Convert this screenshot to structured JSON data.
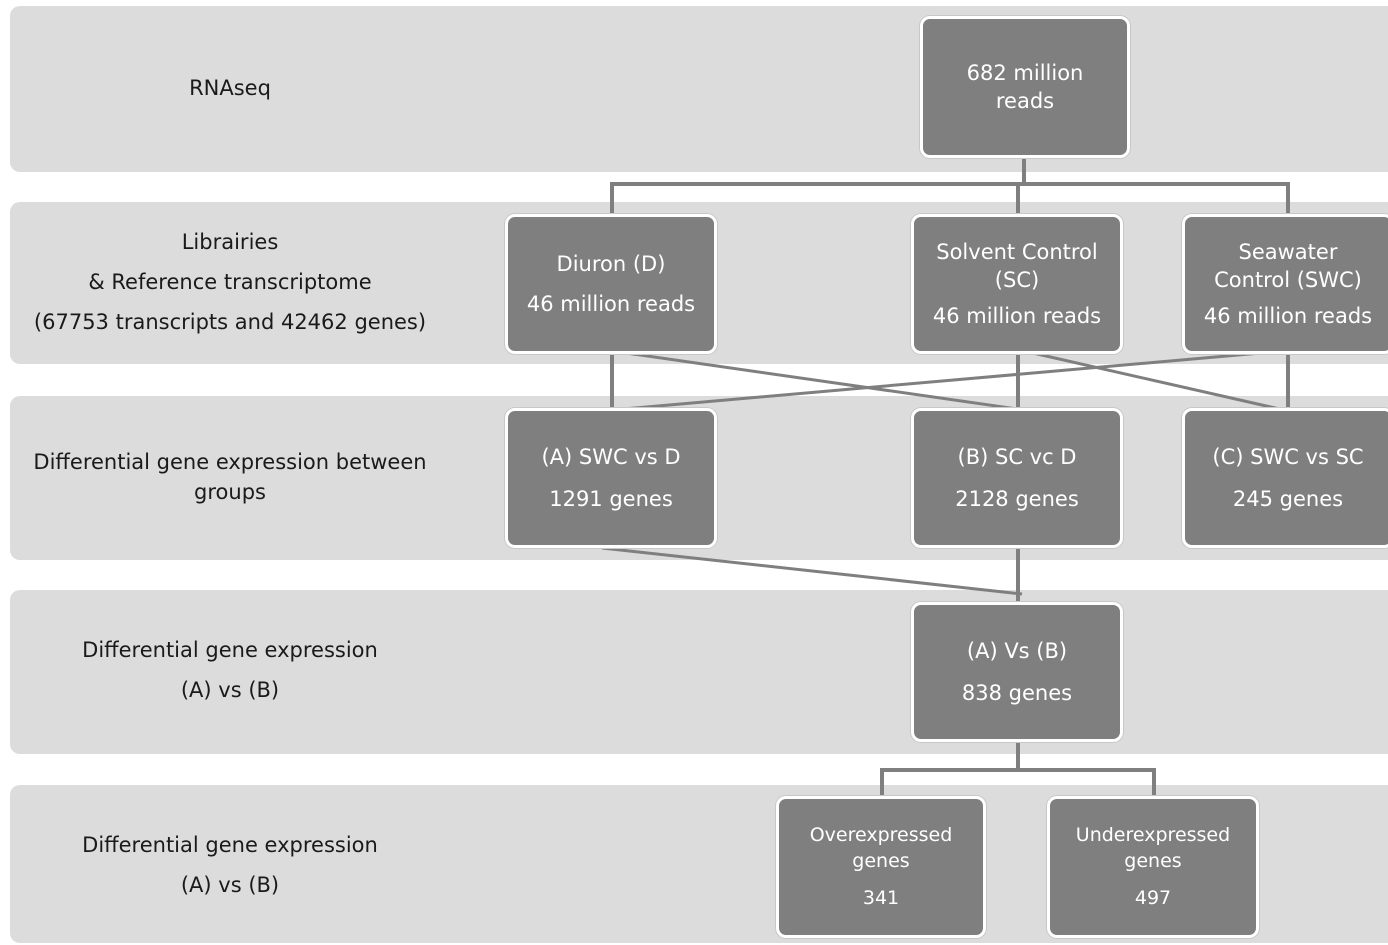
{
  "rows": [
    {
      "label_lines": [
        "RNAseq"
      ]
    },
    {
      "label_lines": [
        "Librairies",
        "& Reference transcriptome",
        "(67753 transcripts and 42462 genes)"
      ]
    },
    {
      "label_lines": [
        "Differential gene expression between",
        "groups"
      ]
    },
    {
      "label_lines": [
        "Differential gene expression",
        "(A) vs (B)"
      ]
    },
    {
      "label_lines": [
        "Differential gene expression",
        "(A) vs (B)"
      ]
    }
  ],
  "nodes": {
    "rnaseq": {
      "title": "682 million reads"
    },
    "diuron": {
      "title": "Diuron (D)",
      "count": "46 million reads"
    },
    "solvent": {
      "title": "Solvent Control (SC)",
      "count": "46 million reads"
    },
    "seawater": {
      "title": "Seawater Control (SWC)",
      "count": "46 million reads"
    },
    "cmp_a": {
      "title": "(A) SWC vs D",
      "count": "1291 genes"
    },
    "cmp_b": {
      "title": "(B) SC vc D",
      "count": "2128 genes"
    },
    "cmp_c": {
      "title": "(C) SWC vs SC",
      "count": "245 genes"
    },
    "a_vs_b": {
      "title": "(A) Vs (B)",
      "count": "838 genes"
    },
    "over": {
      "title": "Overexpressed genes",
      "count": "341"
    },
    "under": {
      "title": "Underexpressed genes",
      "count": "497"
    }
  },
  "colors": {
    "band": "#dcdcdc",
    "box": "#7f7f7f",
    "connector": "#7f7f7f",
    "box_text": "#ffffff"
  }
}
